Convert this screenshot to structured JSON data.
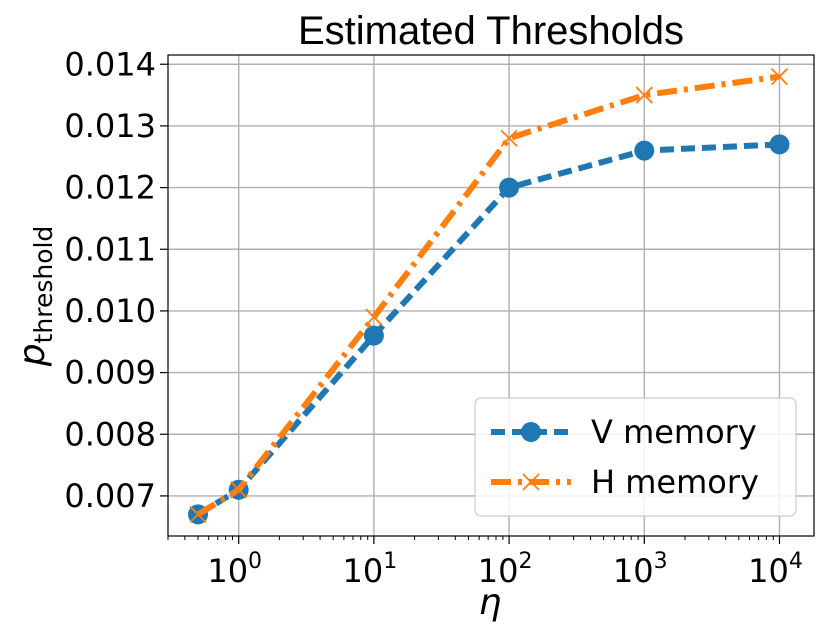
{
  "chart_data": {
    "type": "line",
    "title": "Estimated Thresholds",
    "xlabel": "η",
    "ylabel_main": "p",
    "ylabel_sub": "threshold",
    "xscale": "log",
    "xlim": [
      0.3,
      18000
    ],
    "ylim": [
      0.00635,
      0.01415
    ],
    "x_ticks": [
      {
        "value": 1,
        "base": "10",
        "exp": "0"
      },
      {
        "value": 10,
        "base": "10",
        "exp": "1"
      },
      {
        "value": 100,
        "base": "10",
        "exp": "2"
      },
      {
        "value": 1000,
        "base": "10",
        "exp": "3"
      },
      {
        "value": 10000,
        "base": "10",
        "exp": "4"
      }
    ],
    "y_ticks": [
      {
        "value": 0.007,
        "label": "0.007"
      },
      {
        "value": 0.008,
        "label": "0.008"
      },
      {
        "value": 0.009,
        "label": "0.009"
      },
      {
        "value": 0.01,
        "label": "0.010"
      },
      {
        "value": 0.011,
        "label": "0.011"
      },
      {
        "value": 0.012,
        "label": "0.012"
      },
      {
        "value": 0.013,
        "label": "0.013"
      },
      {
        "value": 0.014,
        "label": "0.014"
      }
    ],
    "x": [
      0.5,
      1,
      10,
      100,
      1000,
      10000
    ],
    "series": [
      {
        "name": "V memory",
        "color": "#1f77b4",
        "marker": "circle",
        "linestyle": "dashed",
        "values": [
          0.0067,
          0.0071,
          0.0096,
          0.012,
          0.0126,
          0.0127
        ]
      },
      {
        "name": "H memory",
        "color": "#ff7f0e",
        "marker": "x",
        "linestyle": "dashdot",
        "values": [
          0.0067,
          0.0071,
          0.0099,
          0.0128,
          0.0135,
          0.0138
        ]
      }
    ],
    "legend": {
      "position": "lower-right"
    },
    "grid": true
  }
}
